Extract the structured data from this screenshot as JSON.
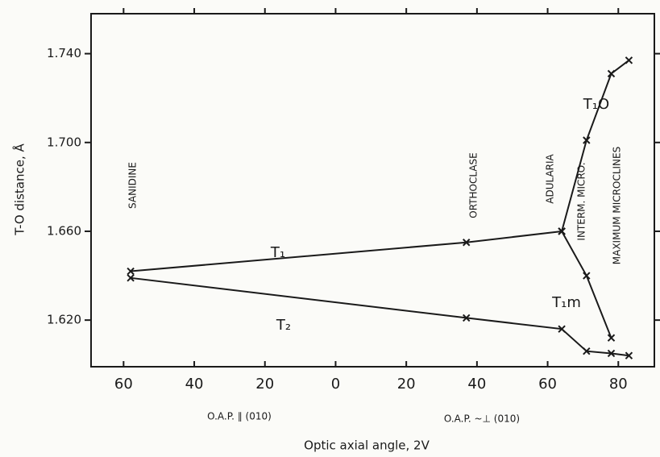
{
  "chart_data": {
    "type": "line",
    "xlabel": "Optic axial angle, 2V",
    "ylabel": "T-O distance, Å",
    "xlim": [
      -69.2,
      90.2
    ],
    "ylim": [
      1.599,
      1.758
    ],
    "xticks": [
      {
        "value": -60,
        "label": "60"
      },
      {
        "value": -40,
        "label": "40"
      },
      {
        "value": -20,
        "label": "20"
      },
      0,
      20,
      40,
      60,
      80
    ],
    "yticks": [
      {
        "value": 1.62,
        "label": "1.620"
      },
      {
        "value": 1.66,
        "label": "1.660"
      },
      {
        "value": 1.7,
        "label": "1.700"
      },
      {
        "value": 1.74,
        "label": "1.740"
      }
    ],
    "x_regions": [
      "O.A.P. ∥ (010)",
      "O.A.P. ~⊥ (010)"
    ],
    "regions": [
      "SANIDINE",
      "ORTHOCLASE",
      "ADULARIA",
      "INTERM. MICRO.",
      "MAXIMUM MICROCLINES"
    ],
    "color": "#1a1a1a",
    "series": [
      {
        "name": "T₁",
        "x": [
          -58,
          37,
          64
        ],
        "values": [
          1.642,
          1.655,
          1.66
        ]
      },
      {
        "name": "T₂",
        "x": [
          -58,
          37,
          64,
          71,
          78,
          83
        ],
        "values": [
          1.639,
          1.621,
          1.616,
          1.606,
          1.605,
          1.604
        ]
      },
      {
        "name": "T₁O",
        "x": [
          64,
          71,
          78,
          83
        ],
        "values": [
          1.66,
          1.701,
          1.731,
          1.737
        ]
      },
      {
        "name": "T₁m",
        "x": [
          64,
          71,
          78
        ],
        "values": [
          1.66,
          1.64,
          1.612
        ]
      }
    ]
  }
}
